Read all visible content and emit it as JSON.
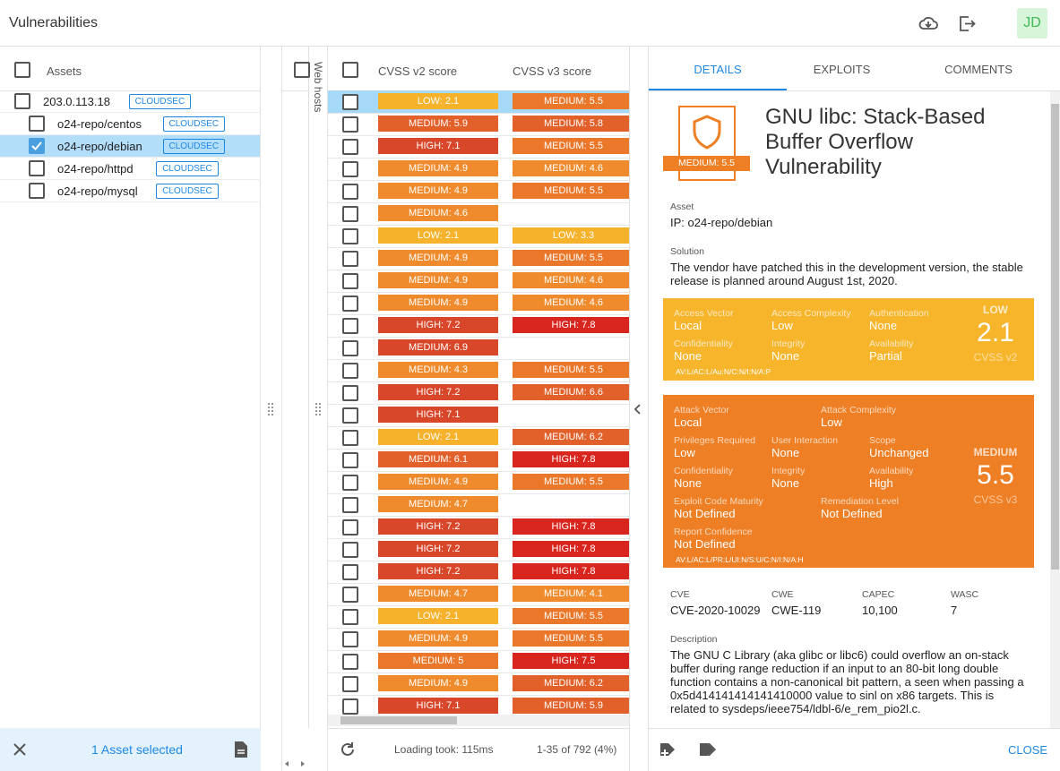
{
  "header": {
    "title": "Vulnerabilities",
    "avatar": "JD"
  },
  "assets": {
    "column": "Assets",
    "tree": [
      {
        "label": "203.0.113.18",
        "tag": "CLOUDSEC",
        "children": [
          {
            "label": "o24-repo/centos",
            "tag": "CLOUDSEC",
            "checked": false
          },
          {
            "label": "o24-repo/debian",
            "tag": "CLOUDSEC",
            "checked": true
          },
          {
            "label": "o24-repo/httpd",
            "tag": "CLOUDSEC",
            "checked": false
          },
          {
            "label": "o24-repo/mysql",
            "tag": "CLOUDSEC",
            "checked": false
          }
        ]
      }
    ],
    "footer": "1 Asset selected"
  },
  "webhosts": {
    "label": "Web hosts"
  },
  "table": {
    "columns": [
      "CVSS v2 score",
      "CVSS v3 score"
    ],
    "selected_row": 0,
    "rows": [
      [
        "LOW: 2.1",
        "MEDIUM: 5.5"
      ],
      [
        "MEDIUM: 5.9",
        "MEDIUM: 5.8"
      ],
      [
        "HIGH: 7.1",
        "MEDIUM: 5.5"
      ],
      [
        "MEDIUM: 4.9",
        "MEDIUM: 4.6"
      ],
      [
        "MEDIUM: 4.9",
        "MEDIUM: 5.5"
      ],
      [
        "MEDIUM: 4.6",
        null
      ],
      [
        "LOW: 2.1",
        "LOW: 3.3"
      ],
      [
        "MEDIUM: 4.9",
        "MEDIUM: 5.5"
      ],
      [
        "MEDIUM: 4.9",
        "MEDIUM: 4.6"
      ],
      [
        "MEDIUM: 4.9",
        "MEDIUM: 4.6"
      ],
      [
        "HIGH: 7.2",
        "HIGH: 7.8"
      ],
      [
        "MEDIUM: 6.9",
        null
      ],
      [
        "MEDIUM: 4.3",
        "MEDIUM: 5.5"
      ],
      [
        "HIGH: 7.2",
        "MEDIUM: 6.6"
      ],
      [
        "HIGH: 7.1",
        null
      ],
      [
        "LOW: 2.1",
        "MEDIUM: 6.2"
      ],
      [
        "MEDIUM: 6.1",
        "HIGH: 7.8"
      ],
      [
        "MEDIUM: 4.9",
        "MEDIUM: 5.5"
      ],
      [
        "MEDIUM: 4.7",
        null
      ],
      [
        "HIGH: 7.2",
        "HIGH: 7.8"
      ],
      [
        "HIGH: 7.2",
        "HIGH: 7.8"
      ],
      [
        "HIGH: 7.2",
        "HIGH: 7.8"
      ],
      [
        "MEDIUM: 4.7",
        "MEDIUM: 4.1"
      ],
      [
        "LOW: 2.1",
        "MEDIUM: 5.5"
      ],
      [
        "MEDIUM: 4.9",
        "MEDIUM: 5.5"
      ],
      [
        "MEDIUM: 5",
        "HIGH: 7.5"
      ],
      [
        "MEDIUM: 4.9",
        "MEDIUM: 6.2"
      ],
      [
        "HIGH: 7.1",
        "MEDIUM: 5.9"
      ]
    ],
    "footer": {
      "loading": "Loading took: 115ms",
      "range": "1-35 of 792 (4%)"
    }
  },
  "details": {
    "tabs": [
      "DETAILS",
      "EXPLOITS",
      "COMMENTS"
    ],
    "active_tab": 0,
    "badge": "MEDIUM: 5.5",
    "title": "GNU libc: Stack-Based Buffer Overflow Vulnerability",
    "asset": {
      "label": "Asset",
      "value": "IP: o24-repo/debian"
    },
    "solution": {
      "label": "Solution",
      "value": "The vendor have patched this in the development version, the stable release is planned around August 1st, 2020."
    },
    "cvss_v2": {
      "color": "#f7b52c",
      "severity": "LOW",
      "score": 2.1,
      "name": "CVSS v2",
      "vector": "AV:L/AC:L/Au:N/C:N/I:N/A:P",
      "rows": [
        [
          {
            "label": "Access Vector",
            "value": "Local"
          },
          {
            "label": "Access Complexity",
            "value": "Low"
          },
          {
            "label": "Authentication",
            "value": "None"
          }
        ],
        [
          {
            "label": "Confidentiality",
            "value": "None"
          },
          {
            "label": "Integrity",
            "value": "None"
          },
          {
            "label": "Availability",
            "value": "Partial"
          }
        ]
      ]
    },
    "cvss_v3": {
      "color": "#ee7f24",
      "severity": "MEDIUM",
      "score": 5.5,
      "name": "CVSS v3",
      "vector": "AV:L/AC:L/PR:L/UI:N/S:U/C:N/I:N/A:H",
      "rows": [
        [
          {
            "label": "Attack Vector",
            "value": "Local"
          },
          {
            "label": "Attack Complexity",
            "value": "Low"
          }
        ],
        [
          {
            "label": "Privileges Required",
            "value": "Low"
          },
          {
            "label": "User Interaction",
            "value": "None"
          },
          {
            "label": "Scope",
            "value": "Unchanged"
          }
        ],
        [
          {
            "label": "Confidentiality",
            "value": "None"
          },
          {
            "label": "Integrity",
            "value": "None"
          },
          {
            "label": "Availability",
            "value": "High"
          }
        ],
        [
          {
            "label": "Exploit Code Maturity",
            "value": "Not Defined"
          },
          {
            "label": "Remediation Level",
            "value": "Not Defined"
          }
        ],
        [
          {
            "label": "Report Confidence",
            "value": "Not Defined"
          }
        ]
      ]
    },
    "ids": [
      {
        "label": "CVE",
        "value": "CVE-2020-10029"
      },
      {
        "label": "CWE",
        "value": "CWE-119"
      },
      {
        "label": "CAPEC",
        "value": "10,100"
      },
      {
        "label": "WASC",
        "value": 7
      }
    ],
    "description": {
      "label": "Description",
      "value": "The GNU C Library (aka glibc or libc6) could overflow an on-stack buffer during range reduction if an input to an 80-bit long double function contains a non-canonical bit pattern, a seen when passing a 0x5d414141414141410000 value to sinl on x86 targets. This is related to sysdeps/ieee754/ldbl-6/e_rem_pio2l.c."
    },
    "close": "CLOSE"
  }
}
